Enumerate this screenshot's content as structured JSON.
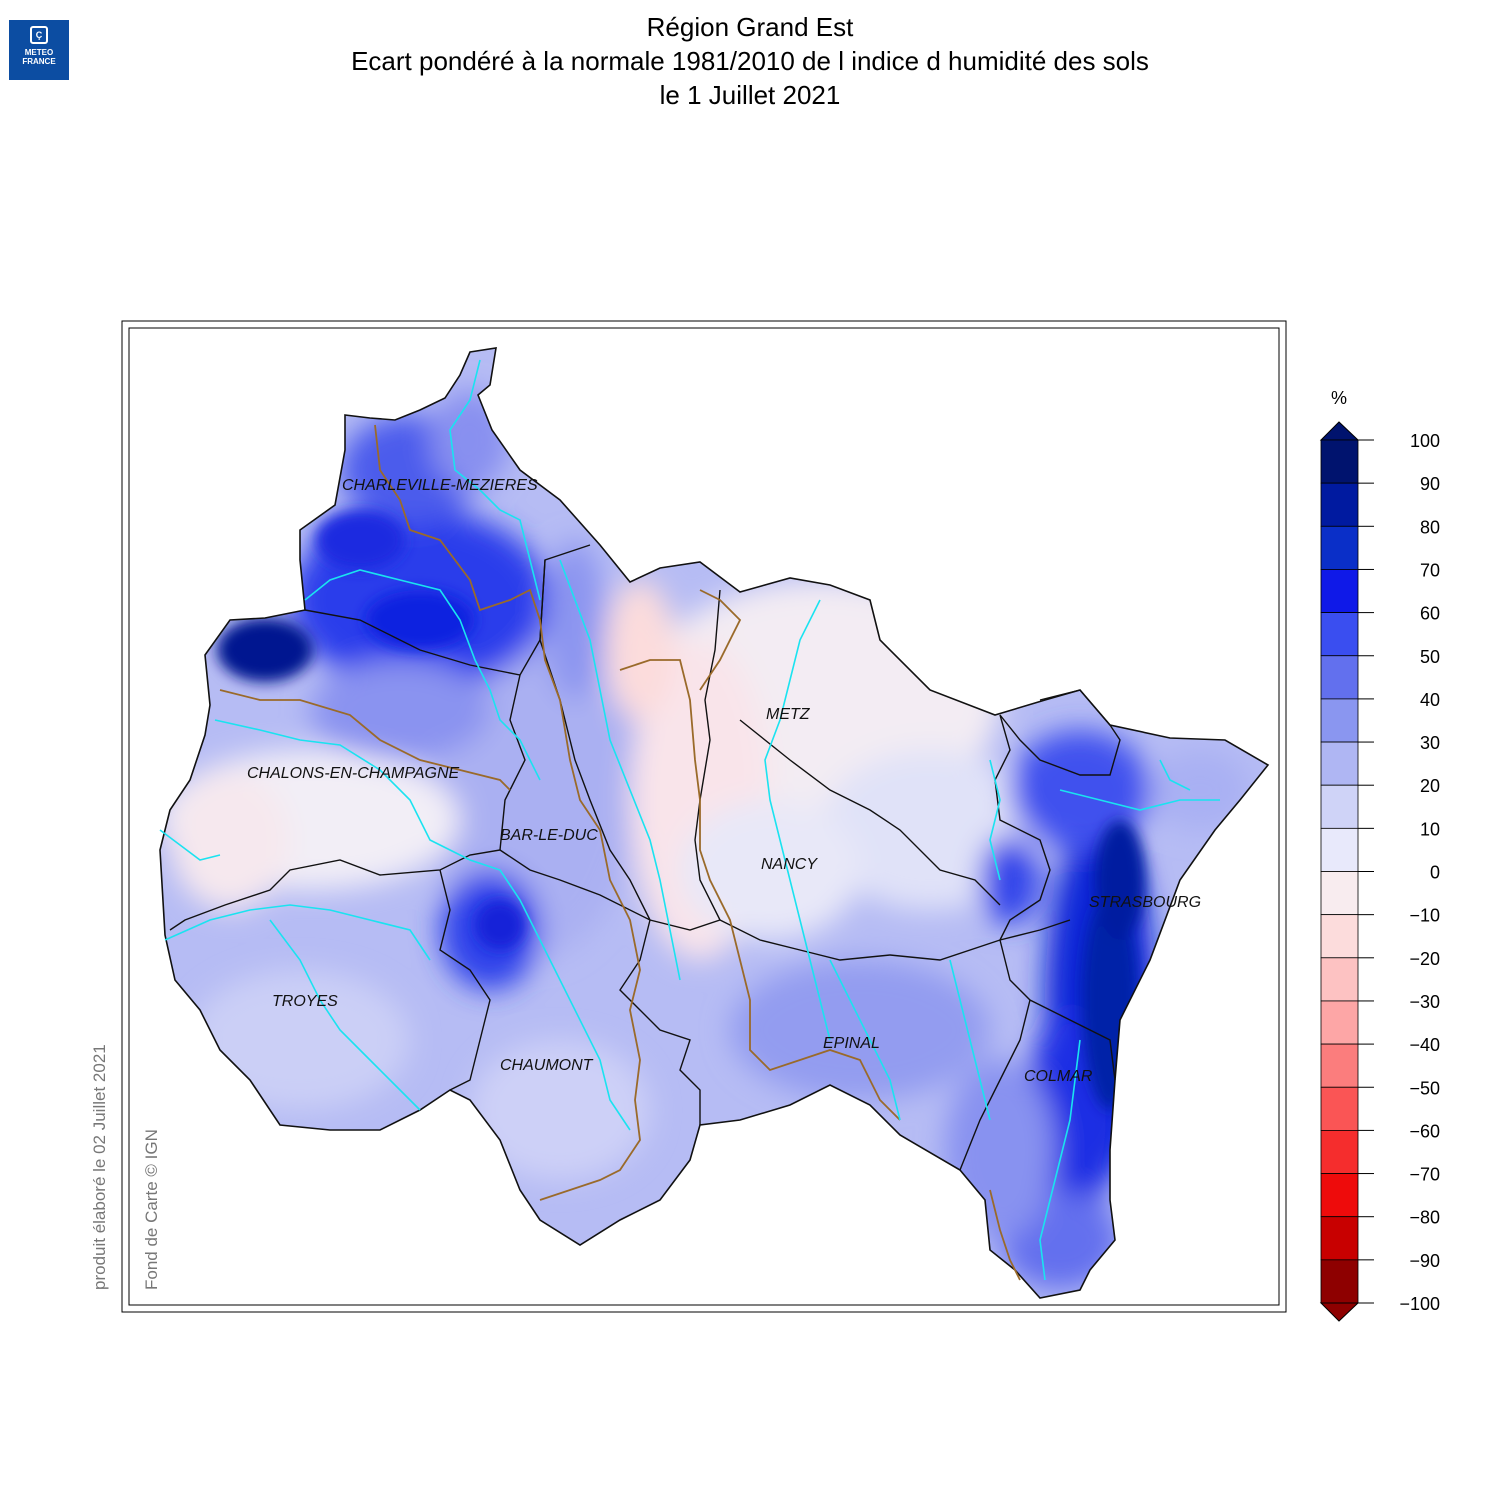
{
  "logo": {
    "line1": "METEO",
    "line2": "FRANCE"
  },
  "title": {
    "line1": "Région Grand Est",
    "line2": "Ecart pondéré à la normale 1981/2010 de l indice d humidité des sols",
    "line3": "le 1 Juillet 2021"
  },
  "credits": {
    "produced": "produit élaboré le 02 Juillet 2021",
    "basemap": "Fond de Carte © IGN"
  },
  "cities": [
    {
      "name": "CHARLEVILLE-MEZIERES"
    },
    {
      "name": "METZ"
    },
    {
      "name": "CHALONS-EN-CHAMPAGNE"
    },
    {
      "name": "BAR-LE-DUC"
    },
    {
      "name": "NANCY"
    },
    {
      "name": "STRASBOURG"
    },
    {
      "name": "TROYES"
    },
    {
      "name": "CHAUMONT"
    },
    {
      "name": "EPINAL"
    },
    {
      "name": "COLMAR"
    }
  ],
  "legend": {
    "unit": "%",
    "ticks": [
      "100",
      "90",
      "80",
      "70",
      "60",
      "50",
      "40",
      "30",
      "20",
      "10",
      "0",
      "−10",
      "−20",
      "−30",
      "−40",
      "−50",
      "−60",
      "−70",
      "−80",
      "−90",
      "−100"
    ],
    "colors": [
      "#00136e",
      "#001aa0",
      "#0a2fc8",
      "#0f19e8",
      "#3a4ef0",
      "#6270ee",
      "#8a96f0",
      "#afb6f3",
      "#cfd3f7",
      "#e8e9fb",
      "#f8ecef",
      "#fcdcdc",
      "#fdc2c2",
      "#fda6a6",
      "#fb7d7d",
      "#fa5555",
      "#f52d2d",
      "#ee0b0b",
      "#c80000",
      "#8e0000"
    ]
  }
}
